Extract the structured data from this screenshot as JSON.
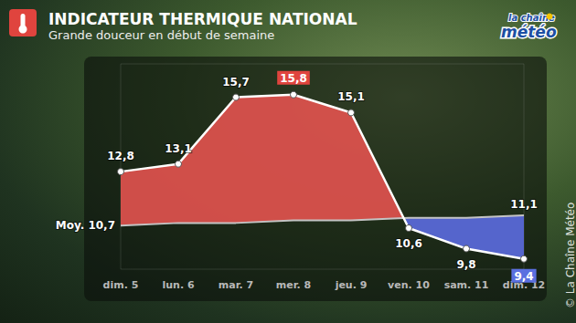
{
  "chart_data": {
    "type": "line",
    "title": "INDICATEUR THERMIQUE NATIONAL",
    "subtitle": "Grande douceur en début de semaine",
    "logo": [
      "la chaîne",
      "météo"
    ],
    "credit": "© La Chaîne Météo",
    "categories": [
      "dim. 5",
      "lun. 6",
      "mar. 7",
      "mer. 8",
      "jeu. 9",
      "ven. 10",
      "sam. 11",
      "dim. 12"
    ],
    "series": [
      {
        "color": "#ffffff",
        "marker": "circle",
        "line_style": "solid",
        "values": [
          12.8,
          13.1,
          15.7,
          15.8,
          15.1,
          10.6,
          9.8,
          9.4
        ],
        "value_labels": [
          "12,8",
          "13,1",
          "15,7",
          "15,8",
          "15,1",
          "10,6",
          "9,8",
          "9,4"
        ]
      },
      {
        "color": "#c4c4c4",
        "line_style": "solid",
        "values": [
          10.7,
          10.8,
          10.8,
          10.9,
          10.9,
          11.0,
          11.0,
          11.1
        ],
        "value_labels": [
          "Moy. 10,7",
          null,
          null,
          null,
          null,
          null,
          null,
          "11,1"
        ]
      }
    ],
    "ylim": [
      9,
      17
    ],
    "tick_labels": "x",
    "grid": false,
    "data_labels": true
  }
}
